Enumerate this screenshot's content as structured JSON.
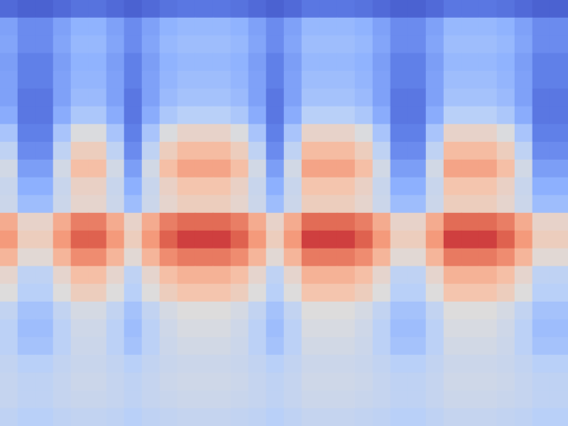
{
  "chart_data": {
    "type": "heatmap",
    "tick_labels": false,
    "clim": [
      0,
      100
    ],
    "cells": [
      [
        7,
        5,
        5,
        7,
        9,
        9,
        7,
        5,
        7,
        9,
        10,
        10,
        10,
        9,
        7,
        5,
        7,
        10,
        10,
        10,
        9,
        7,
        5,
        5,
        7,
        10,
        10,
        10,
        9,
        7,
        5,
        5
      ],
      [
        21,
        15,
        15,
        21,
        26,
        26,
        21,
        15,
        21,
        26,
        28,
        28,
        28,
        26,
        21,
        15,
        21,
        28,
        28,
        28,
        26,
        21,
        15,
        15,
        21,
        28,
        28,
        28,
        26,
        21,
        15,
        15
      ],
      [
        22,
        15,
        15,
        22,
        28,
        28,
        22,
        15,
        22,
        28,
        30,
        30,
        30,
        28,
        22,
        15,
        22,
        30,
        30,
        30,
        28,
        22,
        15,
        15,
        22,
        30,
        30,
        30,
        28,
        22,
        15,
        15
      ],
      [
        20,
        12,
        12,
        20,
        26,
        26,
        20,
        12,
        20,
        26,
        28,
        28,
        28,
        26,
        20,
        12,
        20,
        28,
        28,
        28,
        26,
        20,
        12,
        12,
        20,
        28,
        28,
        28,
        26,
        20,
        12,
        12
      ],
      [
        21,
        12,
        12,
        21,
        27,
        27,
        21,
        12,
        21,
        27,
        30,
        30,
        30,
        27,
        21,
        12,
        21,
        30,
        30,
        30,
        27,
        21,
        12,
        12,
        21,
        30,
        30,
        30,
        27,
        21,
        12,
        12
      ],
      [
        21,
        10,
        10,
        21,
        29,
        29,
        21,
        10,
        21,
        29,
        32,
        32,
        32,
        29,
        21,
        10,
        21,
        32,
        32,
        32,
        29,
        21,
        10,
        10,
        21,
        32,
        32,
        32,
        29,
        21,
        10,
        10
      ],
      [
        24,
        10,
        10,
        24,
        34,
        34,
        24,
        10,
        24,
        34,
        38,
        38,
        38,
        34,
        24,
        10,
        24,
        38,
        38,
        38,
        34,
        24,
        10,
        10,
        24,
        38,
        38,
        38,
        34,
        24,
        10,
        10
      ],
      [
        33,
        12,
        12,
        33,
        49,
        49,
        33,
        12,
        33,
        49,
        55,
        55,
        55,
        49,
        33,
        12,
        33,
        55,
        55,
        55,
        49,
        33,
        12,
        12,
        33,
        55,
        55,
        55,
        49,
        33,
        12,
        12
      ],
      [
        40,
        15,
        15,
        40,
        58,
        58,
        40,
        15,
        40,
        58,
        65,
        65,
        65,
        58,
        40,
        15,
        40,
        65,
        65,
        65,
        58,
        40,
        15,
        15,
        40,
        65,
        65,
        65,
        58,
        40,
        15,
        15
      ],
      [
        46,
        20,
        20,
        46,
        64,
        64,
        46,
        20,
        46,
        64,
        72,
        72,
        72,
        64,
        46,
        20,
        46,
        72,
        72,
        72,
        64,
        46,
        20,
        20,
        46,
        72,
        72,
        72,
        64,
        46,
        20,
        20
      ],
      [
        43,
        25,
        25,
        43,
        56,
        56,
        43,
        25,
        43,
        56,
        62,
        62,
        62,
        56,
        43,
        25,
        43,
        62,
        62,
        62,
        56,
        43,
        25,
        25,
        43,
        62,
        62,
        62,
        56,
        43,
        25,
        25
      ],
      [
        44,
        30,
        30,
        44,
        54,
        54,
        44,
        30,
        44,
        54,
        58,
        58,
        58,
        54,
        44,
        30,
        44,
        58,
        58,
        58,
        54,
        44,
        30,
        30,
        44,
        58,
        58,
        58,
        54,
        44,
        30,
        30
      ],
      [
        70,
        55,
        55,
        70,
        81,
        81,
        70,
        55,
        70,
        81,
        85,
        85,
        85,
        81,
        70,
        55,
        70,
        85,
        85,
        85,
        81,
        70,
        55,
        55,
        70,
        85,
        85,
        85,
        81,
        70,
        55,
        55
      ],
      [
        75,
        58,
        58,
        75,
        87,
        87,
        75,
        58,
        75,
        87,
        92,
        92,
        92,
        87,
        75,
        58,
        75,
        92,
        92,
        92,
        87,
        75,
        58,
        58,
        75,
        92,
        92,
        92,
        87,
        75,
        58,
        58
      ],
      [
        67,
        52,
        52,
        67,
        78,
        78,
        67,
        52,
        67,
        78,
        82,
        82,
        82,
        78,
        67,
        52,
        67,
        82,
        82,
        82,
        78,
        67,
        52,
        52,
        67,
        82,
        82,
        82,
        78,
        67,
        52,
        52
      ],
      [
        54,
        40,
        40,
        54,
        64,
        64,
        54,
        40,
        54,
        64,
        68,
        68,
        68,
        64,
        54,
        40,
        54,
        68,
        68,
        68,
        64,
        54,
        40,
        40,
        54,
        68,
        68,
        68,
        64,
        54,
        40,
        40
      ],
      [
        50,
        38,
        38,
        50,
        58,
        58,
        50,
        38,
        50,
        58,
        62,
        62,
        62,
        58,
        50,
        38,
        50,
        62,
        62,
        62,
        58,
        50,
        38,
        38,
        50,
        62,
        62,
        62,
        58,
        50,
        38,
        38
      ],
      [
        41,
        32,
        32,
        41,
        47,
        47,
        41,
        32,
        41,
        47,
        50,
        50,
        50,
        47,
        41,
        32,
        41,
        50,
        50,
        50,
        47,
        41,
        32,
        32,
        41,
        50,
        50,
        50,
        47,
        41,
        32,
        32
      ],
      [
        39,
        30,
        30,
        39,
        45,
        45,
        39,
        30,
        39,
        45,
        48,
        48,
        48,
        45,
        39,
        30,
        39,
        48,
        48,
        48,
        45,
        39,
        30,
        30,
        39,
        48,
        48,
        48,
        45,
        39,
        30,
        30
      ],
      [
        39,
        32,
        32,
        39,
        44,
        44,
        39,
        32,
        39,
        44,
        46,
        46,
        46,
        44,
        39,
        32,
        39,
        46,
        46,
        46,
        44,
        39,
        32,
        32,
        39,
        46,
        46,
        46,
        44,
        39,
        32,
        32
      ],
      [
        41,
        38,
        38,
        41,
        43,
        43,
        41,
        38,
        41,
        43,
        44,
        44,
        44,
        43,
        41,
        38,
        41,
        44,
        44,
        44,
        43,
        41,
        38,
        38,
        41,
        44,
        44,
        44,
        43,
        41,
        38,
        38
      ],
      [
        42,
        40,
        40,
        42,
        44,
        44,
        42,
        40,
        42,
        44,
        45,
        45,
        45,
        44,
        42,
        40,
        42,
        45,
        45,
        45,
        44,
        42,
        40,
        40,
        42,
        45,
        45,
        45,
        44,
        42,
        40,
        40
      ],
      [
        42,
        40,
        40,
        42,
        43,
        43,
        42,
        40,
        42,
        43,
        44,
        44,
        44,
        43,
        42,
        40,
        42,
        44,
        44,
        44,
        43,
        42,
        40,
        40,
        42,
        44,
        44,
        44,
        43,
        42,
        40,
        40
      ],
      [
        40,
        38,
        38,
        40,
        41,
        41,
        40,
        38,
        40,
        41,
        42,
        42,
        42,
        41,
        40,
        38,
        40,
        42,
        42,
        42,
        41,
        40,
        38,
        38,
        40,
        42,
        42,
        42,
        41,
        40,
        38,
        38
      ]
    ]
  }
}
